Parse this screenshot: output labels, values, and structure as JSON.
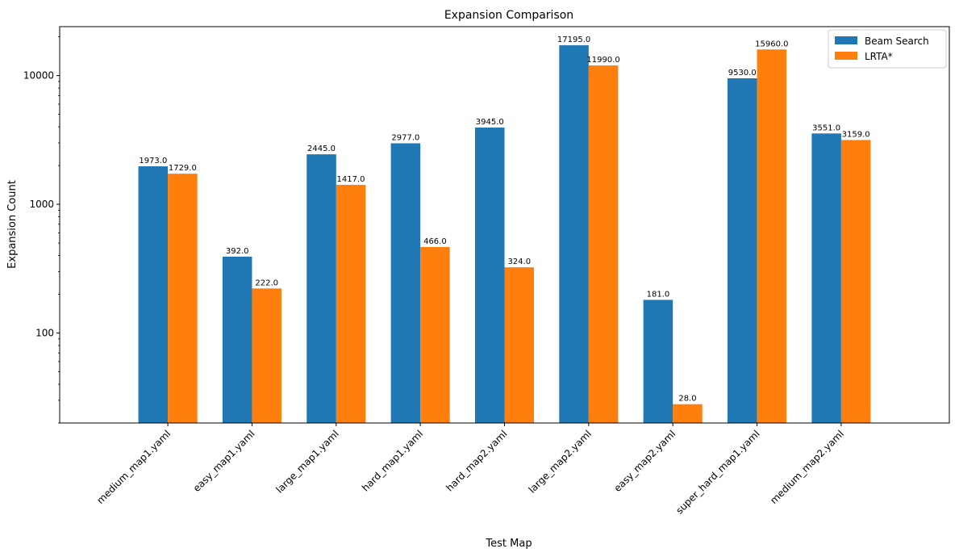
{
  "chart_data": {
    "type": "bar",
    "title": "Expansion Comparison",
    "xlabel": "Test Map",
    "ylabel": "Expansion Count",
    "yscale": "log",
    "ylim": [
      20,
      24000
    ],
    "yticks": [
      100,
      1000,
      10000
    ],
    "ytick_labels": [
      "100",
      "1000",
      "10000"
    ],
    "categories": [
      "medium_map1.yaml",
      "easy_map1.yaml",
      "large_map1.yaml",
      "hard_map1.yaml",
      "hard_map2.yaml",
      "large_map2.yaml",
      "easy_map2.yaml",
      "super_hard_map1.yaml",
      "medium_map2.yaml"
    ],
    "series": [
      {
        "name": "Beam Search",
        "color": "#1f77b4",
        "values": [
          1973,
          392,
          2445,
          2977,
          3945,
          17195,
          181,
          9530,
          3551
        ],
        "labels": [
          "1973.0",
          "392.0",
          "2445.0",
          "2977.0",
          "3945.0",
          "17195.0",
          "181.0",
          "9530.0",
          "3551.0"
        ]
      },
      {
        "name": "LRTA*",
        "color": "#ff7f0e",
        "values": [
          1729,
          222,
          1417,
          466,
          324,
          11990,
          28,
          15960,
          3159
        ],
        "labels": [
          "1729.0",
          "222.0",
          "1417.0",
          "466.0",
          "324.0",
          "11990.0",
          "28.0",
          "15960.0",
          "3159.0"
        ]
      }
    ],
    "legend_position": "top-right",
    "grid": false
  }
}
